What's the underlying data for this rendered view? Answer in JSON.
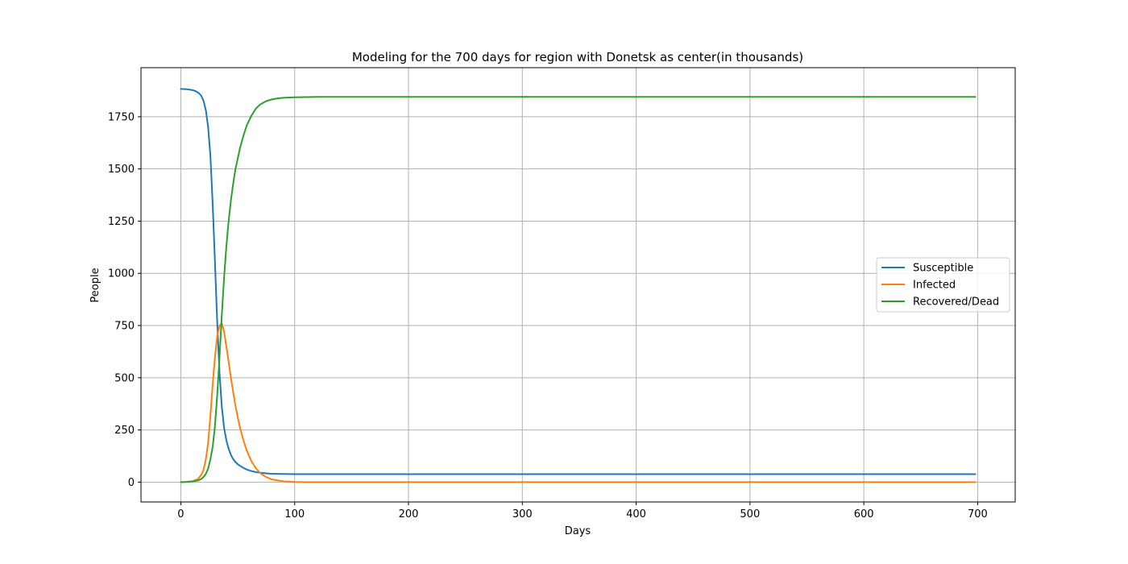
{
  "chart_data": {
    "type": "line",
    "title": "Modeling for the 700 days for region with Donetsk as center(in thousands)",
    "xlabel": "Days",
    "ylabel": "People",
    "xlim": [
      -35,
      733
    ],
    "ylim": [
      -95,
      1985
    ],
    "xticks": [
      0,
      100,
      200,
      300,
      400,
      500,
      600,
      700
    ],
    "yticks": [
      0,
      250,
      500,
      750,
      1000,
      1250,
      1500,
      1750
    ],
    "grid": true,
    "legend_position": "center-right",
    "series": [
      {
        "name": "Susceptible",
        "color": "#1f77b4",
        "x": [
          0,
          5,
          10,
          13,
          16,
          18,
          20,
          22,
          24,
          26,
          28,
          30,
          32,
          34,
          36,
          38,
          40,
          42,
          44,
          46,
          48,
          50,
          52,
          55,
          58,
          62,
          66,
          70,
          75,
          80,
          90,
          100,
          120,
          150,
          200,
          300,
          400,
          500,
          600,
          698
        ],
        "y": [
          1883,
          1882,
          1878,
          1873,
          1862,
          1850,
          1825,
          1780,
          1700,
          1560,
          1330,
          1050,
          760,
          520,
          360,
          260,
          200,
          160,
          130,
          110,
          96,
          86,
          78,
          68,
          60,
          53,
          48,
          45,
          42,
          40,
          39,
          38,
          38,
          38,
          38,
          38,
          38,
          38,
          38,
          38
        ]
      },
      {
        "name": "Infected",
        "color": "#ff7f0e",
        "x": [
          0,
          5,
          10,
          15,
          18,
          20,
          22,
          24,
          26,
          28,
          30,
          32,
          34,
          36,
          38,
          40,
          42,
          44,
          46,
          48,
          50,
          52,
          55,
          58,
          62,
          66,
          70,
          75,
          80,
          90,
          100,
          110,
          120,
          150,
          200,
          300,
          400,
          500,
          600,
          698
        ],
        "y": [
          0,
          1,
          4,
          15,
          35,
          60,
          110,
          190,
          320,
          470,
          600,
          700,
          750,
          760,
          720,
          650,
          575,
          500,
          430,
          365,
          310,
          260,
          200,
          150,
          100,
          66,
          42,
          24,
          13,
          4,
          1,
          0,
          0,
          0,
          0,
          0,
          0,
          0,
          0,
          0
        ]
      },
      {
        "name": "Recovered/Dead",
        "color": "#2ca02c",
        "x": [
          0,
          5,
          10,
          15,
          18,
          20,
          22,
          24,
          26,
          28,
          30,
          32,
          34,
          36,
          38,
          40,
          42,
          44,
          46,
          48,
          50,
          52,
          55,
          58,
          62,
          66,
          70,
          75,
          80,
          85,
          90,
          100,
          110,
          120,
          150,
          200,
          300,
          400,
          500,
          600,
          698
        ],
        "y": [
          0,
          1,
          3,
          8,
          15,
          25,
          40,
          65,
          110,
          170,
          270,
          420,
          600,
          800,
          980,
          1130,
          1250,
          1350,
          1430,
          1500,
          1550,
          1600,
          1660,
          1710,
          1755,
          1790,
          1810,
          1825,
          1833,
          1838,
          1841,
          1843,
          1844,
          1845,
          1845,
          1845,
          1845,
          1845,
          1845,
          1845,
          1845
        ]
      }
    ]
  }
}
